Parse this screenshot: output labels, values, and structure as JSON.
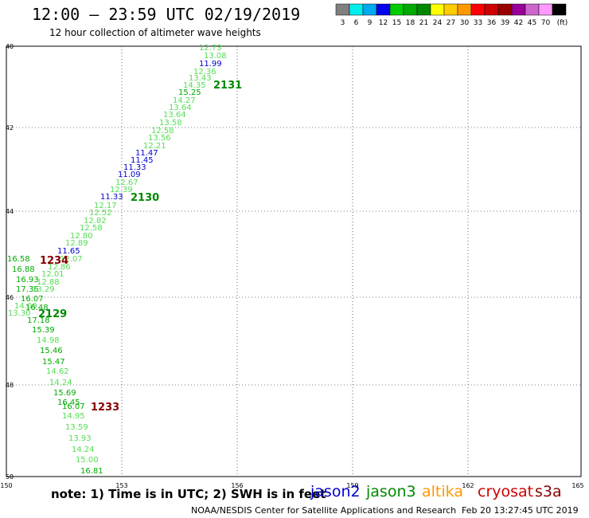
{
  "header": {
    "title": "12:00 – 23:59 UTC 02/19/2019",
    "subtitle": "12 hour collection of altimeter wave heights"
  },
  "colorbar": {
    "colors": [
      "#808080",
      "#00eeee",
      "#00aaee",
      "#0000ee",
      "#00cc00",
      "#00aa00",
      "#008800",
      "#ffff00",
      "#ffcc00",
      "#ff9900",
      "#ff0000",
      "#cc0000",
      "#990000",
      "#990099",
      "#cc66cc",
      "#ff99ff",
      "#000000"
    ],
    "labels": [
      "3",
      "6",
      "9",
      "12",
      "15",
      "18",
      "21",
      "24",
      "27",
      "30",
      "33",
      "36",
      "39",
      "42",
      "45",
      "70",
      "(ft)"
    ]
  },
  "axes": {
    "x_labels": [
      "150",
      "153",
      "156",
      "159",
      "162",
      "165"
    ],
    "y_labels": [
      "40",
      "42",
      "44",
      "46",
      "48",
      "50"
    ]
  },
  "track_labels": [
    {
      "text": "2131",
      "color": "#008800"
    },
    {
      "text": "2130",
      "color": "#008800"
    },
    {
      "text": "1234",
      "color": "#880000"
    },
    {
      "text": "2129",
      "color": "#008800"
    },
    {
      "text": "1233",
      "color": "#880000"
    }
  ],
  "wave_values": [
    {
      "v": "12.73",
      "c": "#55dd55"
    },
    {
      "v": "13.08",
      "c": "#55dd55"
    },
    {
      "v": "11.99",
      "c": "#0000cc"
    },
    {
      "v": "12.36",
      "c": "#55dd55"
    },
    {
      "v": "13.43",
      "c": "#55dd55"
    },
    {
      "v": "14.35",
      "c": "#55dd55"
    },
    {
      "v": "15.25",
      "c": "#00aa00"
    },
    {
      "v": "14.27",
      "c": "#55dd55"
    },
    {
      "v": "13.64",
      "c": "#55dd55"
    },
    {
      "v": "13.64",
      "c": "#55dd55"
    },
    {
      "v": "13.58",
      "c": "#55dd55"
    },
    {
      "v": "12.58",
      "c": "#55dd55"
    },
    {
      "v": "13.56",
      "c": "#55dd55"
    },
    {
      "v": "12.21",
      "c": "#55dd55"
    },
    {
      "v": "11.47",
      "c": "#0000cc"
    },
    {
      "v": "11.45",
      "c": "#0000cc"
    },
    {
      "v": "11.33",
      "c": "#0000cc"
    },
    {
      "v": "11.09",
      "c": "#0000cc"
    },
    {
      "v": "12.67",
      "c": "#55dd55"
    },
    {
      "v": "12.39",
      "c": "#55dd55"
    },
    {
      "v": "11.33",
      "c": "#0000cc"
    },
    {
      "v": "12.17",
      "c": "#55dd55"
    },
    {
      "v": "12.52",
      "c": "#55dd55"
    },
    {
      "v": "12.82",
      "c": "#55dd55"
    },
    {
      "v": "12.58",
      "c": "#55dd55"
    },
    {
      "v": "12.80",
      "c": "#55dd55"
    },
    {
      "v": "12.89",
      "c": "#55dd55"
    },
    {
      "v": "11.65",
      "c": "#0000cc"
    },
    {
      "v": "16.58",
      "c": "#00aa00"
    },
    {
      "v": "12.07",
      "c": "#55dd55"
    },
    {
      "v": "16.88",
      "c": "#00aa00"
    },
    {
      "v": "12.86",
      "c": "#55dd55"
    },
    {
      "v": "12.01",
      "c": "#55dd55"
    },
    {
      "v": "16.93",
      "c": "#00aa00"
    },
    {
      "v": "12.88",
      "c": "#55dd55"
    },
    {
      "v": "17.36",
      "c": "#00aa00"
    },
    {
      "v": "13.29",
      "c": "#55dd55"
    },
    {
      "v": "16.07",
      "c": "#00aa00"
    },
    {
      "v": "14.09",
      "c": "#55dd55"
    },
    {
      "v": "16.48",
      "c": "#00aa00"
    },
    {
      "v": "13.30",
      "c": "#55dd55"
    },
    {
      "v": "17.18",
      "c": "#00aa00"
    },
    {
      "v": "15.39",
      "c": "#00aa00"
    },
    {
      "v": "14.98",
      "c": "#55dd55"
    },
    {
      "v": "15.46",
      "c": "#00aa00"
    },
    {
      "v": "15.47",
      "c": "#00aa00"
    },
    {
      "v": "14.62",
      "c": "#55dd55"
    },
    {
      "v": "14.24",
      "c": "#55dd55"
    },
    {
      "v": "15.69",
      "c": "#00aa00"
    },
    {
      "v": "16.45",
      "c": "#00aa00"
    },
    {
      "v": "16.07",
      "c": "#00aa00"
    },
    {
      "v": "14.95",
      "c": "#55dd55"
    },
    {
      "v": "13.59",
      "c": "#55dd55"
    },
    {
      "v": "13.93",
      "c": "#55dd55"
    },
    {
      "v": "14.24",
      "c": "#55dd55"
    },
    {
      "v": "15.00",
      "c": "#55dd55"
    },
    {
      "v": "16.81",
      "c": "#00aa00"
    }
  ],
  "footer": {
    "note": "note: 1) Time is in UTC; 2) SWH is in feet",
    "satellites": [
      {
        "name": "jason2",
        "color": "#0000cc"
      },
      {
        "name": "jason3",
        "color": "#008800"
      },
      {
        "name": "altika",
        "color": "#ff9900"
      },
      {
        "name": "cryosat",
        "color": "#cc0000"
      },
      {
        "name": "s3a",
        "color": "#880000"
      }
    ],
    "credit": "NOAA/NESDIS Center for Satellite Applications and Research",
    "timestamp": "Feb 20 13:27:45 UTC 2019"
  }
}
